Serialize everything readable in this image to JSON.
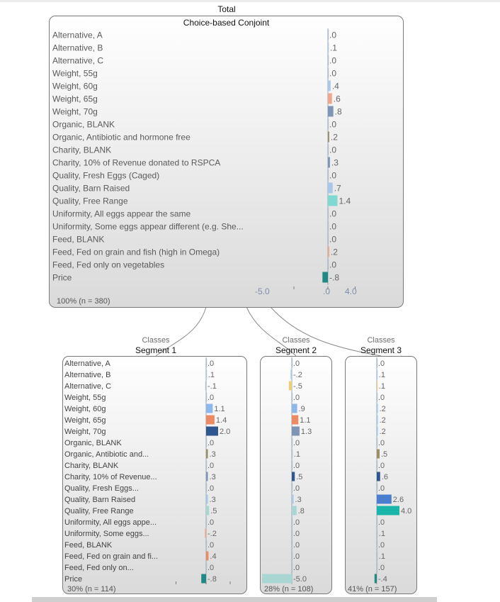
{
  "colors": {
    "teal_dark": "#1f8a84",
    "teal_bright": "#1ab5a8",
    "mint": "#7fd9d1",
    "lightblue": "#a9c7ea",
    "medblue": "#8eb7ea",
    "slate": "#7e95b5",
    "navy": "#2f568f",
    "royal": "#4a7fd0",
    "salmon": "#f4a587",
    "orange": "#ee8a63",
    "olive": "#9a8f66",
    "palegold": "#e8d07a",
    "paleteal": "#a9d6d3",
    "grey": "#b5bcc6"
  },
  "total": {
    "header": "Total",
    "title": "Choice-based Conjoint",
    "footer": "100% (n = 380)",
    "axis_labels": [
      "-5.0",
      ".0",
      "4.0"
    ]
  },
  "segments": [
    {
      "classes_label": "Classes",
      "title": "Segment 1",
      "footer": "30% (n = 114)"
    },
    {
      "classes_label": "Classes",
      "title": "Segment 2",
      "footer": "28% (n = 108)"
    },
    {
      "classes_label": "Classes",
      "title": "Segment 3",
      "footer": "41% (n = 157)"
    }
  ],
  "chart_data": [
    {
      "type": "bar",
      "title": "Choice-based Conjoint",
      "panel": "Total",
      "categories": [
        "Alternative, A",
        "Alternative, B",
        "Alternative, C",
        "Weight, 55g",
        "Weight, 60g",
        "Weight, 65g",
        "Weight, 70g",
        "Organic, BLANK",
        "Organic, Antibiotic and hormone free",
        "Charity, BLANK",
        "Charity, 10% of Revenue donated to RSPCA",
        "Quality, Fresh Eggs (Caged)",
        "Quality, Barn Raised",
        "Quality,  Free Range",
        "Uniformity, All eggs appear the same",
        "Uniformity, Some eggs appear different (e.g. She...",
        "Feed, BLANK",
        "Feed, Fed on grain and fish (high in Omega)",
        "Feed, Fed only on vegetables",
        "Price"
      ],
      "values": [
        0,
        0.1,
        0,
        0,
        0.4,
        0.6,
        0.8,
        0,
        0.2,
        0,
        0.3,
        0,
        0.7,
        1.4,
        0,
        0,
        0,
        0.2,
        0,
        -0.8
      ],
      "value_labels": [
        ".0",
        ".1",
        ".0",
        ".0",
        ".4",
        ".6",
        ".8",
        ".0",
        ".2",
        ".0",
        ".3",
        ".0",
        ".7",
        "1.4",
        ".0",
        ".0",
        ".0",
        ".2",
        ".0",
        "-.8"
      ],
      "bar_colors": [
        "grey",
        "lightblue",
        "grey",
        "grey",
        "lightblue",
        "salmon",
        "slate",
        "grey",
        "olive",
        "grey",
        "slate",
        "grey",
        "lightblue",
        "mint",
        "grey",
        "grey",
        "grey",
        "salmon",
        "grey",
        "teal_dark"
      ],
      "xlim": [
        -5.0,
        4.0
      ],
      "xticks": [
        "-5.0",
        ".0",
        "4.0"
      ]
    },
    {
      "type": "bar",
      "panel": "Segment 1",
      "categories": [
        "Alternative, A",
        "Alternative, B",
        "Alternative, C",
        "Weight, 55g",
        "Weight, 60g",
        "Weight, 65g",
        "Weight, 70g",
        "Organic, BLANK",
        "Organic, Antibiotic and...",
        "Charity, BLANK",
        "Charity, 10% of Revenue...",
        "Quality, Fresh Eggs...",
        "Quality, Barn Raised",
        "Quality, Free Range",
        "Uniformity, All eggs appe...",
        "Uniformity, Some eggs...",
        "Feed, BLANK",
        "Feed, Fed on grain and fi...",
        "Feed, Fed only on...",
        "Price"
      ],
      "values": [
        0,
        0.1,
        -0.1,
        0,
        1.1,
        1.4,
        2.0,
        0,
        0.3,
        0,
        0.3,
        0,
        0.3,
        0.5,
        0,
        -0.2,
        0,
        0.4,
        0,
        -0.8
      ],
      "value_labels": [
        ".0",
        ".1",
        "-.1",
        ".0",
        "1.1",
        "1.4",
        "2.0",
        ".0",
        ".3",
        ".0",
        ".3",
        ".0",
        ".3",
        ".5",
        ".0",
        "-.2",
        ".0",
        ".4",
        ".0",
        "-.8"
      ],
      "bar_colors": [
        "grey",
        "lightblue",
        "grey",
        "grey",
        "medblue",
        "orange",
        "navy",
        "grey",
        "olive",
        "grey",
        "slate",
        "grey",
        "lightblue",
        "paleteal",
        "grey",
        "salmon",
        "grey",
        "orange",
        "grey",
        "teal_dark"
      ],
      "xlim": [
        -5.0,
        4.0
      ]
    },
    {
      "type": "bar",
      "panel": "Segment 2",
      "categories": [
        "Alternative, A",
        "Alternative, B",
        "Alternative, C",
        "Weight, 55g",
        "Weight, 60g",
        "Weight, 65g",
        "Weight, 70g",
        "Organic, BLANK",
        "Organic, Antibiotic and...",
        "Charity, BLANK",
        "Charity, 10% of Revenue...",
        "Quality, Fresh Eggs...",
        "Quality, Barn Raised",
        "Quality, Free Range",
        "Uniformity, All eggs appe...",
        "Uniformity, Some eggs...",
        "Feed, BLANK",
        "Feed, Fed on grain and fi...",
        "Feed, Fed only on...",
        "Price"
      ],
      "values": [
        0,
        -0.2,
        -0.5,
        0,
        0.9,
        1.1,
        1.3,
        0,
        0.1,
        0,
        0.5,
        0,
        0.3,
        0.8,
        0,
        0,
        0,
        0,
        0,
        -5.0
      ],
      "value_labels": [
        ".0",
        "-.2",
        "-.5",
        ".0",
        ".9",
        "1.1",
        "1.3",
        ".0",
        ".1",
        ".0",
        ".5",
        ".0",
        ".3",
        ".8",
        ".0",
        ".0",
        ".0",
        ".0",
        ".0",
        "-5.0"
      ],
      "bar_colors": [
        "grey",
        "lightblue",
        "palegold",
        "grey",
        "medblue",
        "orange",
        "slate",
        "grey",
        "grey",
        "grey",
        "navy",
        "grey",
        "lightblue",
        "paleteal",
        "grey",
        "grey",
        "grey",
        "grey",
        "grey",
        "paleteal"
      ],
      "xlim": [
        -5.0,
        4.0
      ]
    },
    {
      "type": "bar",
      "panel": "Segment 3",
      "categories": [
        "Alternative, A",
        "Alternative, B",
        "Alternative, C",
        "Weight, 55g",
        "Weight, 60g",
        "Weight, 65g",
        "Weight, 70g",
        "Organic, BLANK",
        "Organic, Antibiotic and...",
        "Charity, BLANK",
        "Charity, 10% of Revenue...",
        "Quality, Fresh Eggs...",
        "Quality, Barn Raised",
        "Quality, Free Range",
        "Uniformity, All eggs appe...",
        "Uniformity, Some eggs...",
        "Feed, BLANK",
        "Feed, Fed on grain and fi...",
        "Feed, Fed only on...",
        "Price"
      ],
      "values": [
        0,
        0.1,
        0.1,
        0,
        0.2,
        0.2,
        0.2,
        0,
        0.5,
        0,
        0.6,
        0,
        2.6,
        4.0,
        0,
        0.1,
        0,
        0.1,
        0,
        -0.4
      ],
      "value_labels": [
        ".0",
        ".1",
        ".1",
        ".0",
        ".2",
        ".2",
        ".2",
        ".0",
        ".5",
        ".0",
        ".6",
        ".0",
        "2.6",
        "4.0",
        ".0",
        ".1",
        ".0",
        ".1",
        ".0",
        "-.4"
      ],
      "bar_colors": [
        "grey",
        "lightblue",
        "palegold",
        "grey",
        "lightblue",
        "lightblue",
        "lightblue",
        "grey",
        "olive",
        "grey",
        "navy",
        "grey",
        "royal",
        "teal_bright",
        "grey",
        "grey",
        "grey",
        "grey",
        "grey",
        "teal_dark"
      ],
      "xlim": [
        -5.0,
        4.0
      ]
    }
  ]
}
